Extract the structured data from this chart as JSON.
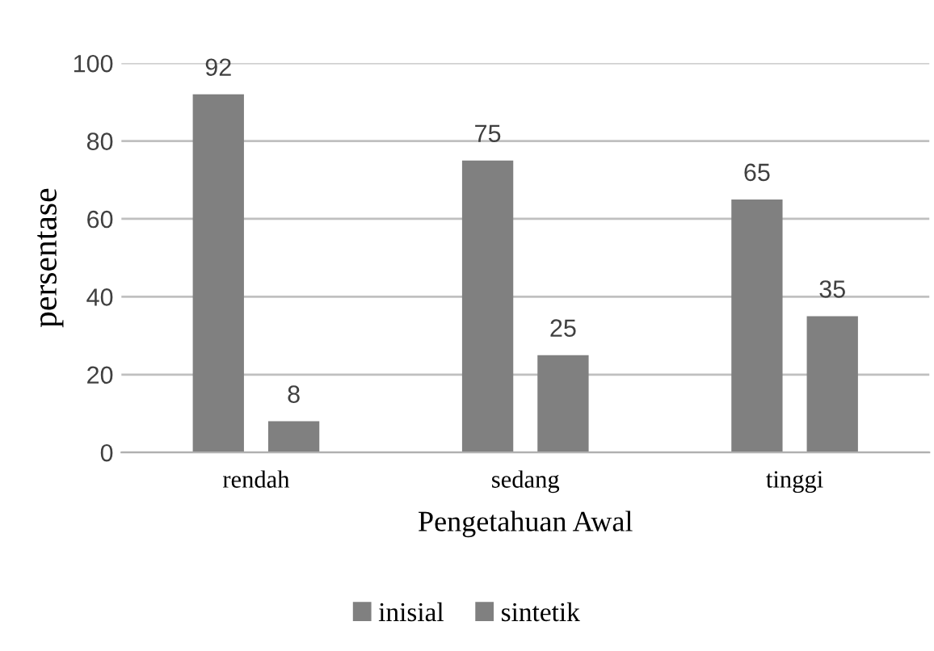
{
  "chart_data": {
    "type": "bar",
    "xlabel": "Pengetahuan Awal",
    "ylabel": "persentase",
    "categories": [
      "rendah",
      "sedang",
      "tinggi"
    ],
    "series": [
      {
        "name": "inisial",
        "color": "#808080",
        "values": [
          92,
          75,
          65
        ]
      },
      {
        "name": "sintetik",
        "color": "#808080",
        "values": [
          8,
          25,
          35
        ]
      }
    ],
    "ylim": [
      0,
      100
    ],
    "yticks": [
      0,
      20,
      40,
      60,
      80,
      100
    ],
    "grid": "y",
    "legend": "bottom",
    "data_labels": true
  }
}
